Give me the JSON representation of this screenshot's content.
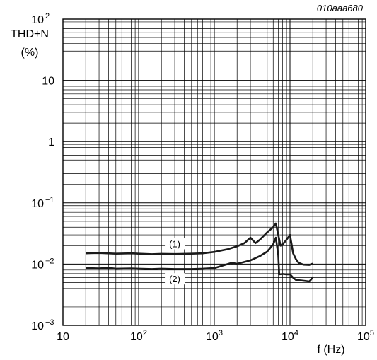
{
  "chart_data": {
    "type": "line",
    "figure_id": "010aaa680",
    "ylabel_line1": "THD+N",
    "ylabel_line2": "(%)",
    "xlabel": "f (Hz)",
    "x_scale": "log",
    "y_scale": "log",
    "xlim": [
      10,
      100000
    ],
    "ylim": [
      0.001,
      100
    ],
    "grid": true,
    "x_ticks": [
      {
        "base": "10",
        "exp": ""
      },
      {
        "base": "10",
        "exp": "2"
      },
      {
        "base": "10",
        "exp": "3"
      },
      {
        "base": "10",
        "exp": "4"
      },
      {
        "base": "10",
        "exp": "5"
      }
    ],
    "y_ticks": [
      {
        "base": "10",
        "exp": "2"
      },
      {
        "base": "10",
        "exp": ""
      },
      {
        "base": "1",
        "exp": ""
      },
      {
        "base": "10",
        "exp": "−1"
      },
      {
        "base": "10",
        "exp": "−2"
      },
      {
        "base": "10",
        "exp": "−3"
      }
    ],
    "series": [
      {
        "name": "(1)",
        "label_at": [
          300,
          0.021
        ],
        "points": [
          [
            20,
            0.015
          ],
          [
            30,
            0.0152
          ],
          [
            50,
            0.0148
          ],
          [
            80,
            0.015
          ],
          [
            100,
            0.0148
          ],
          [
            150,
            0.0145
          ],
          [
            200,
            0.0147
          ],
          [
            300,
            0.0146
          ],
          [
            500,
            0.0148
          ],
          [
            700,
            0.015
          ],
          [
            1000,
            0.0158
          ],
          [
            1500,
            0.0175
          ],
          [
            2000,
            0.0195
          ],
          [
            2500,
            0.022
          ],
          [
            3000,
            0.027
          ],
          [
            3500,
            0.022
          ],
          [
            4000,
            0.025
          ],
          [
            5000,
            0.033
          ],
          [
            6000,
            0.04
          ],
          [
            6500,
            0.046
          ],
          [
            7000,
            0.03
          ],
          [
            7500,
            0.02
          ],
          [
            8000,
            0.021
          ],
          [
            9000,
            0.025
          ],
          [
            10000,
            0.03
          ],
          [
            11000,
            0.015
          ],
          [
            12000,
            0.012
          ],
          [
            13000,
            0.0105
          ],
          [
            15000,
            0.0098
          ],
          [
            18000,
            0.0097
          ],
          [
            20000,
            0.0102
          ]
        ]
      },
      {
        "name": "(2)",
        "label_at": [
          300,
          0.0056
        ],
        "points": [
          [
            20,
            0.0086
          ],
          [
            30,
            0.0085
          ],
          [
            40,
            0.0087
          ],
          [
            50,
            0.0084
          ],
          [
            80,
            0.0085
          ],
          [
            100,
            0.0084
          ],
          [
            150,
            0.0083
          ],
          [
            200,
            0.0084
          ],
          [
            300,
            0.0083
          ],
          [
            500,
            0.0083
          ],
          [
            700,
            0.0084
          ],
          [
            1000,
            0.0086
          ],
          [
            1300,
            0.0095
          ],
          [
            1700,
            0.0105
          ],
          [
            2000,
            0.0101
          ],
          [
            3000,
            0.0115
          ],
          [
            4000,
            0.0135
          ],
          [
            5000,
            0.016
          ],
          [
            6000,
            0.021
          ],
          [
            6500,
            0.027
          ],
          [
            7000,
            0.014
          ],
          [
            7200,
            0.0068
          ],
          [
            8000,
            0.0069
          ],
          [
            9000,
            0.0068
          ],
          [
            10000,
            0.0068
          ],
          [
            11000,
            0.006
          ],
          [
            12000,
            0.0055
          ],
          [
            14000,
            0.0054
          ],
          [
            16000,
            0.0053
          ],
          [
            18000,
            0.0052
          ],
          [
            19000,
            0.0056
          ],
          [
            20000,
            0.0062
          ]
        ]
      }
    ]
  }
}
